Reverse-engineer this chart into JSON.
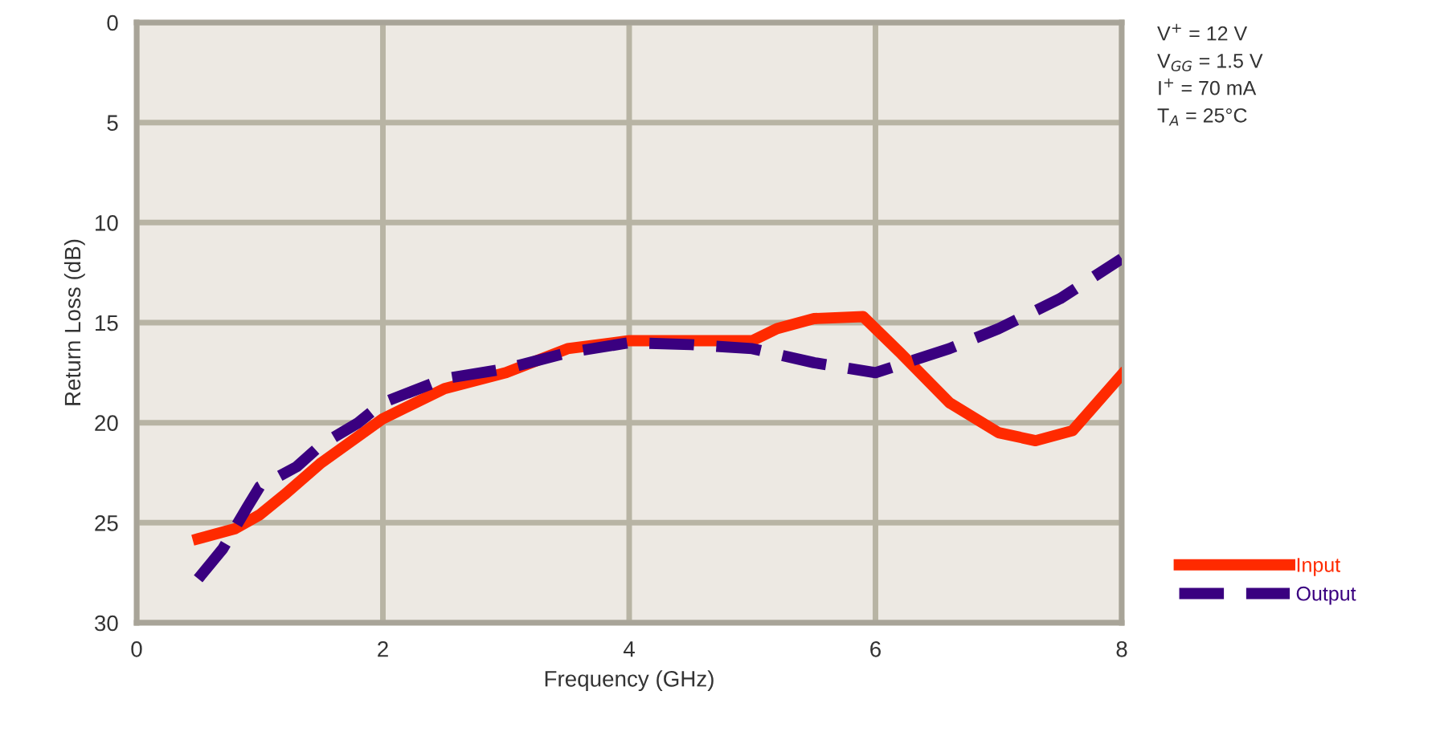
{
  "chart_data": {
    "type": "line",
    "xlabel": "Frequency (GHz)",
    "ylabel": "Return Loss (dB)",
    "xlim": [
      0,
      8
    ],
    "xticks": [
      0,
      2,
      4,
      6,
      8
    ],
    "ylim": [
      30,
      0
    ],
    "yticks": [
      0,
      5,
      10,
      15,
      20,
      25,
      30
    ],
    "grid": true,
    "legend": "bottom right",
    "annotations": [
      "V$^{+}$ = 12 V",
      "V$_{GG}$ = 1.5 V",
      "I$^{+}$ = 70 mA",
      "T$_{A}$ = 25°C"
    ],
    "series": [
      {
        "name": "Input",
        "color": "#ff2a00",
        "line_style": "solid",
        "x": [
          0.5,
          0.8,
          1.0,
          1.2,
          1.5,
          2.0,
          2.5,
          3.0,
          3.5,
          4.0,
          4.5,
          5.0,
          5.2,
          5.5,
          5.9,
          6.2,
          6.6,
          7.0,
          7.3,
          7.6,
          8.0
        ],
        "values": [
          25.8,
          25.3,
          24.6,
          23.6,
          22.0,
          19.8,
          18.3,
          17.5,
          16.3,
          15.9,
          15.9,
          15.9,
          15.3,
          14.8,
          14.7,
          16.5,
          19.0,
          20.5,
          20.9,
          20.4,
          17.6
        ]
      },
      {
        "name": "Output",
        "color": "#3a0080",
        "line_style": "dashed",
        "x": [
          0.5,
          0.7,
          0.9,
          1.0,
          1.3,
          1.5,
          1.8,
          2.0,
          2.5,
          3.0,
          3.5,
          4.0,
          4.5,
          5.0,
          5.5,
          6.0,
          6.3,
          6.6,
          7.0,
          7.5,
          8.0
        ],
        "values": [
          27.8,
          26.3,
          24.2,
          23.2,
          22.2,
          21.1,
          20.0,
          19.0,
          17.8,
          17.3,
          16.5,
          16.0,
          16.1,
          16.3,
          17.0,
          17.5,
          16.9,
          16.3,
          15.3,
          13.8,
          11.8
        ]
      }
    ]
  }
}
